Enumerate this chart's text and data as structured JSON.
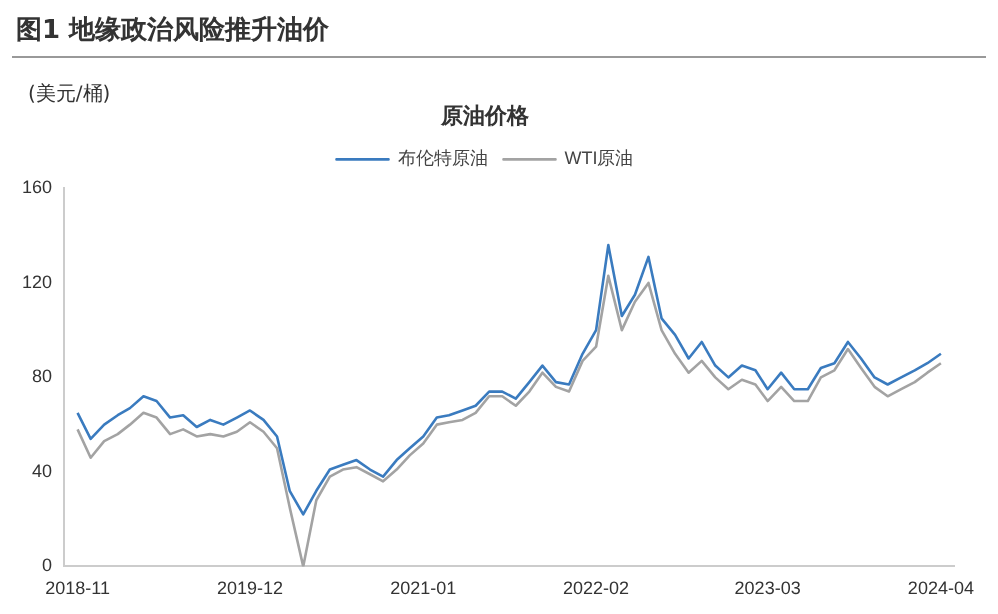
{
  "chart_data": {
    "type": "line",
    "title": "图1 地缘政治风险推升油价",
    "subtitle": "原油价格",
    "ylabel": "(美元/桶)",
    "x": [
      "2018-11",
      "2018-12",
      "2019-01",
      "2019-02",
      "2019-03",
      "2019-04",
      "2019-05",
      "2019-06",
      "2019-07",
      "2019-08",
      "2019-09",
      "2019-10",
      "2019-11",
      "2019-12",
      "2020-01",
      "2020-02",
      "2020-03",
      "2020-04",
      "2020-05",
      "2020-06",
      "2020-07",
      "2020-08",
      "2020-09",
      "2020-10",
      "2020-11",
      "2020-12",
      "2021-01",
      "2021-02",
      "2021-03",
      "2021-04",
      "2021-05",
      "2021-06",
      "2021-07",
      "2021-08",
      "2021-09",
      "2021-10",
      "2021-11",
      "2021-12",
      "2022-01",
      "2022-02",
      "2022-03",
      "2022-04",
      "2022-05",
      "2022-06",
      "2022-07",
      "2022-08",
      "2022-09",
      "2022-10",
      "2022-11",
      "2022-12",
      "2023-01",
      "2023-02",
      "2023-03",
      "2023-04",
      "2023-05",
      "2023-06",
      "2023-07",
      "2023-08",
      "2023-09",
      "2023-10",
      "2023-11",
      "2023-12",
      "2024-01",
      "2024-02",
      "2024-03",
      "2024-04"
    ],
    "series": [
      {
        "name": "布伦特原油",
        "color": "#3a7bbf",
        "values": [
          65,
          54,
          60,
          64,
          67,
          72,
          70,
          63,
          64,
          59,
          62,
          60,
          63,
          66,
          62,
          55,
          32,
          22,
          32,
          41,
          43,
          45,
          41,
          38,
          45,
          50,
          55,
          63,
          64,
          66,
          68,
          74,
          74,
          71,
          78,
          85,
          78,
          77,
          90,
          100,
          136,
          106,
          115,
          131,
          105,
          98,
          88,
          95,
          85,
          80,
          85,
          83,
          75,
          82,
          75,
          75,
          84,
          86,
          95,
          88,
          80,
          77,
          80,
          83,
          86,
          90
        ]
      },
      {
        "name": "WTI原油",
        "color": "#a3a3a3",
        "values": [
          58,
          46,
          53,
          56,
          60,
          65,
          63,
          56,
          58,
          55,
          56,
          55,
          57,
          61,
          57,
          50,
          25,
          0,
          28,
          38,
          41,
          42,
          39,
          36,
          41,
          47,
          52,
          60,
          61,
          62,
          65,
          72,
          72,
          68,
          74,
          82,
          76,
          74,
          87,
          93,
          123,
          100,
          112,
          120,
          100,
          90,
          82,
          87,
          80,
          75,
          79,
          77,
          70,
          76,
          70,
          70,
          80,
          83,
          92,
          84,
          76,
          72,
          75,
          78,
          82,
          86
        ]
      }
    ],
    "xlim": [
      "2018-10",
      "2024-05"
    ],
    "xticks": [
      "2018-11",
      "2019-12",
      "2021-01",
      "2022-02",
      "2023-03",
      "2024-04"
    ],
    "ylim": [
      0,
      160
    ],
    "yticks": [
      0,
      40,
      80,
      120,
      160
    ],
    "grid": false,
    "legend": "top",
    "marker": "none",
    "line_style": "solid"
  }
}
